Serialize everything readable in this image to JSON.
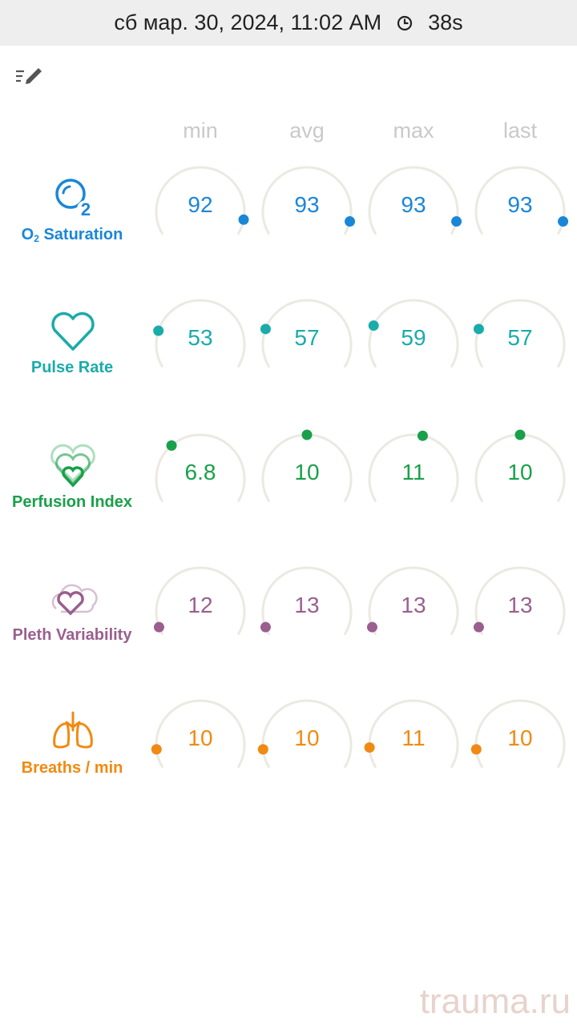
{
  "status_bar": {
    "date": "сб мар. 30, 2024, 11:02 AM",
    "duration": "38s"
  },
  "columns": [
    "min",
    "avg",
    "max",
    "last"
  ],
  "metrics": [
    {
      "name": "O2 Saturation",
      "label_main": "O",
      "label_sub": "2",
      "label_rest": " Saturation",
      "icon": "o2-bubble-icon",
      "color": "#1a86d8",
      "values": [
        "92",
        "93",
        "93",
        "93"
      ],
      "indicator_levels": [
        0.92,
        0.93,
        0.93,
        0.93
      ]
    },
    {
      "name": "Pulse Rate",
      "label_main": "Pulse Rate",
      "label_sub": "",
      "label_rest": "",
      "icon": "heart-icon",
      "color": "#19acaa",
      "values": [
        "53",
        "57",
        "59",
        "57"
      ],
      "indicator_levels": [
        0.2,
        0.21,
        0.23,
        0.21
      ]
    },
    {
      "name": "Perfusion Index",
      "label_main": "Perfusion Index",
      "label_sub": "",
      "label_rest": "",
      "icon": "layered-heart-icon",
      "color": "#19a04a",
      "values": [
        "6.8",
        "10",
        "11",
        "10"
      ],
      "indicator_levels": [
        0.33,
        0.5,
        0.55,
        0.5
      ]
    },
    {
      "name": "Pleth Variability",
      "label_main": "Pleth Variability",
      "label_sub": "",
      "label_rest": "",
      "icon": "cloud-heart-icon",
      "color": "#9a5f8e",
      "values": [
        "12",
        "13",
        "13",
        "13"
      ],
      "indicator_levels": [
        0.04,
        0.04,
        0.04,
        0.04
      ]
    },
    {
      "name": "Breaths / min",
      "label_main": "Breaths / min",
      "label_sub": "",
      "label_rest": "",
      "icon": "lungs-icon",
      "color": "#f08a12",
      "values": [
        "10",
        "10",
        "11",
        "10"
      ],
      "indicator_levels": [
        0.1,
        0.1,
        0.11,
        0.1
      ]
    }
  ],
  "watermark": "trauma.ru",
  "colors": {
    "track": "#ece9e2",
    "header_text": "#c9c9c9",
    "status_bg": "#eeeeee"
  }
}
